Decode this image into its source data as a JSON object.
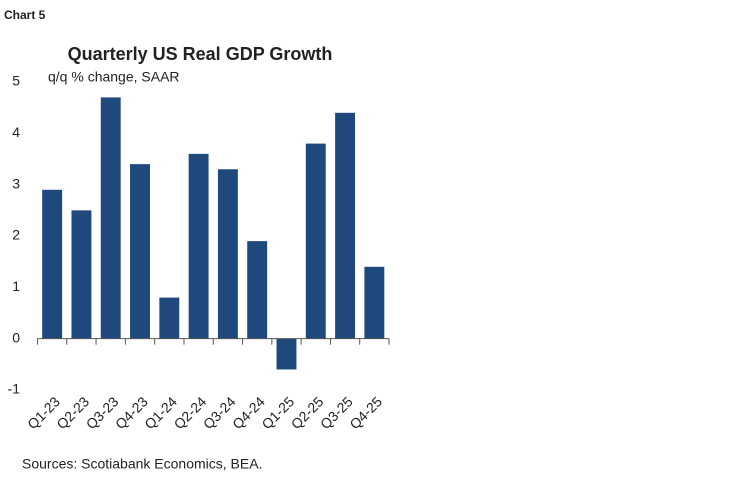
{
  "label": "Chart 5",
  "chart_data": {
    "type": "bar",
    "title": "Quarterly US Real GDP Growth",
    "subtitle": "q/q % change, SAAR",
    "source": "Sources: Scotiabank Economics, BEA.",
    "categories": [
      "Q1-23",
      "Q2-23",
      "Q3-23",
      "Q4-23",
      "Q1-24",
      "Q2-24",
      "Q3-24",
      "Q4-24",
      "Q1-25",
      "Q2-25",
      "Q3-25",
      "Q4-25"
    ],
    "values": [
      2.9,
      2.5,
      4.7,
      3.4,
      0.8,
      3.6,
      3.3,
      1.9,
      -0.6,
      3.8,
      4.4,
      1.4
    ],
    "color": "#1f497d",
    "ylim": [
      -1,
      5
    ],
    "yticks": [
      -1,
      0,
      1,
      2,
      3,
      4,
      5
    ],
    "grid": false
  }
}
